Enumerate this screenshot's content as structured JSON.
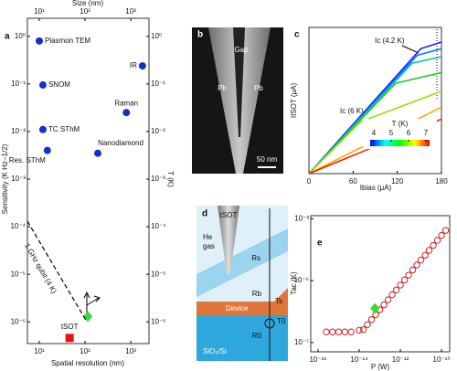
{
  "chart_data": [
    {
      "type": "scatter",
      "panel_label": "a",
      "x_label": "Spatial resolution (nm)",
      "y_label": "Sensitivity (K Hz−1/2)",
      "x2_label": "Size (nm)",
      "y2_label": "T (K)",
      "xlog": true,
      "ylog": true,
      "xlim": [
        5.5,
        2500
      ],
      "ylim": [
        3.5e-07,
        2.4
      ],
      "y2lim": [
        3.5e-07,
        2.4
      ],
      "xticks": [
        {
          "value": 10,
          "label": "10¹"
        },
        {
          "value": 100,
          "label": "10²"
        },
        {
          "value": 1000,
          "label": "10³"
        }
      ],
      "x2ticks": [
        {
          "value": 10,
          "label": "10¹"
        },
        {
          "value": 100,
          "label": "10²"
        },
        {
          "value": 1000,
          "label": "10³"
        }
      ],
      "yticks": [
        {
          "value": 1,
          "label": "10⁰"
        },
        {
          "value": 0.1,
          "label": "10⁻¹"
        },
        {
          "value": 0.01,
          "label": "10⁻²"
        },
        {
          "value": 0.001,
          "label": "10⁻³"
        },
        {
          "value": 0.0001,
          "label": "10⁻⁴"
        },
        {
          "value": 1e-05,
          "label": "10⁻⁵"
        },
        {
          "value": 1e-06,
          "label": "10⁻⁶"
        }
      ],
      "y2ticks": [
        {
          "value": 1,
          "label": "10⁰"
        },
        {
          "value": 0.1,
          "label": "10⁻¹"
        },
        {
          "value": 0.01,
          "label": "10⁻²"
        },
        {
          "value": 0.001,
          "label": "10⁻³"
        },
        {
          "value": 0.0001,
          "label": "10⁻⁴"
        },
        {
          "value": 1e-05,
          "label": "10⁻⁵"
        },
        {
          "value": 1e-06,
          "label": "10⁻⁶"
        }
      ],
      "series": [
        {
          "marker": "circle",
          "color": "#1530c8",
          "x": [
            10,
            1800,
            12,
            800,
            12,
            15,
            190
          ],
          "values": [
            0.8,
            0.24,
            0.095,
            0.025,
            0.011,
            0.004,
            0.0035
          ],
          "labels": [
            "Plasmon TEM",
            "IR",
            "SNOM",
            "Raman",
            "TC SThM",
            "Res. SThM",
            "Nanodiamond"
          ]
        },
        {
          "marker": "diamond",
          "color": "#33dd33",
          "x": [
            115
          ],
          "values": [
            1.3e-06
          ]
        },
        {
          "marker": "square",
          "color": "#ee1111",
          "x": [
            46
          ],
          "values": [
            4.6e-07
          ],
          "labels": [
            "tSOT"
          ]
        },
        {
          "line": "dashed",
          "color": "#000000",
          "x": [
            5.5,
            110
          ],
          "values": [
            0.00013,
            1e-06
          ]
        }
      ],
      "annotations": [
        "1 GHz qubit (4 K)"
      ]
    },
    {
      "type": "line",
      "panel_label": "c",
      "x_label": "Ibias (μA)",
      "y_label": "IISOT (μA)",
      "xlim": [
        0,
        180
      ],
      "ylim": [
        0,
        110
      ],
      "xticks": [
        0,
        60,
        120,
        180
      ],
      "series": [
        {
          "color": "#1a1aff",
          "x": [
            0,
            152,
            180
          ],
          "values": [
            0,
            94,
            99
          ]
        },
        {
          "color": "#0077ff",
          "x": [
            0,
            147,
            180
          ],
          "values": [
            0,
            89,
            94
          ]
        },
        {
          "color": "#00c0c0",
          "x": [
            0,
            140,
            180
          ],
          "values": [
            0,
            83,
            88
          ]
        },
        {
          "color": "#22cc22",
          "x": [
            0,
            118,
            180
          ],
          "values": [
            0,
            68,
            76
          ]
        },
        {
          "color": "#99dd00",
          "x": [
            0,
            70,
            180
          ],
          "values": [
            0,
            39,
            62
          ]
        },
        {
          "color": "#ffaa00",
          "x": [
            0,
            180
          ],
          "values": [
            0,
            50
          ]
        },
        {
          "color": "#ee2200",
          "x": [
            0,
            180
          ],
          "values": [
            0,
            41
          ]
        }
      ],
      "annotations": [
        "Ic (4.2 K)",
        "Ic (6 K)"
      ],
      "colorbar": {
        "label": "T (K)",
        "lim": [
          4,
          7
        ],
        "ticks": [
          4,
          5,
          6,
          7
        ],
        "colors": [
          "#0000ff",
          "#00ffff",
          "#00ff00",
          "#ffff00",
          "#ff0000"
        ]
      }
    },
    {
      "type": "scatter",
      "panel_label": "e",
      "x_label": "P (W)",
      "y_label": "Tac (K)",
      "xlog": true,
      "ylog": true,
      "xlim": [
        4.4e-17,
        2.5e-10
      ],
      "ylim": [
        5e-08,
        0.00126
      ],
      "xticks": [
        {
          "value": 1e-16,
          "label": "10⁻¹⁶"
        },
        {
          "value": 1e-14,
          "label": "10⁻¹⁴"
        },
        {
          "value": 1e-12,
          "label": "10⁻¹²"
        },
        {
          "value": 1e-10,
          "label": "10⁻¹⁰"
        }
      ],
      "yticks": [
        {
          "value": 1e-07,
          "label": "10⁻⁷"
        },
        {
          "value": 1e-05,
          "label": "10⁻⁵"
        },
        {
          "value": 0.001,
          "label": "10⁻³"
        }
      ],
      "series": [
        {
          "marker": "open-circle",
          "color": "#cc2222",
          "x": [
            2.5e-16,
            5e-16,
            1e-15,
            2e-15,
            4e-15,
            1e-14,
            1.6e-14,
            2.5e-14,
            4e-14,
            6.3e-14,
            1e-13,
            1.6e-13,
            2.5e-13,
            4e-13,
            6.3e-13,
            1e-12,
            1.6e-12,
            2.5e-12,
            4e-12,
            6.3e-12,
            1e-11,
            1.6e-11,
            2.5e-11,
            4e-11,
            6.3e-11,
            1e-10,
            1.6e-10
          ],
          "values": [
            2.2e-07,
            2.2e-07,
            2.2e-07,
            2.2e-07,
            2.2e-07,
            2.5e-07,
            2.6e-07,
            3.8e-07,
            5.5e-07,
            7.9e-07,
            1.15e-06,
            1.66e-06,
            2.4e-06,
            3.5e-06,
            5e-06,
            7.2e-06,
            1.05e-05,
            1.5e-05,
            2.2e-05,
            3.2e-05,
            4.6e-05,
            6.6e-05,
            9.5e-05,
            0.000138,
            0.0002,
            0.00029,
            0.00042
          ]
        },
        {
          "marker": "diamond",
          "color": "#33dd33",
          "x": [
            5.8e-14
          ],
          "values": [
            1.26e-06
          ]
        }
      ]
    }
  ],
  "micrograph": {
    "panel_label": "b",
    "labels": [
      "Gap",
      "Pb",
      "Pb"
    ],
    "scale_bar": "50 nm"
  },
  "schematic": {
    "panel_label": "d",
    "labels": [
      "tSOT",
      "He",
      "gas",
      "Rs",
      "Device",
      "Rb",
      "Ts",
      "T0",
      "R0",
      "SiO₂/Si"
    ]
  }
}
